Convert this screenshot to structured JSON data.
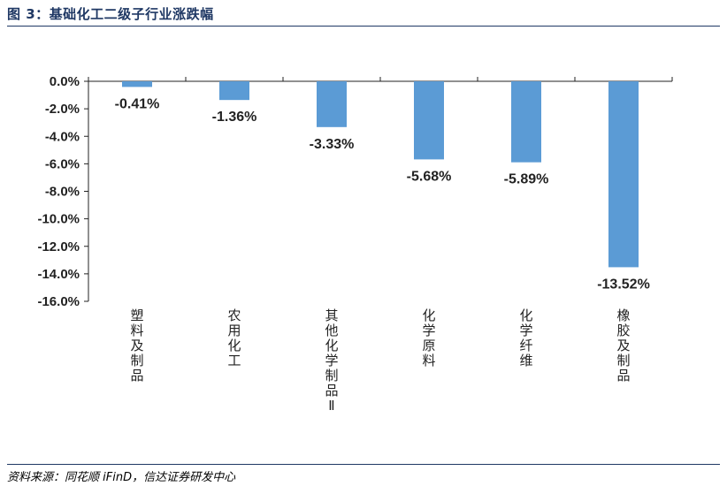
{
  "figure": {
    "title": "图 3：基础化工二级子行业涨跌幅",
    "source": "资料来源：同花顺 iFinD，信达证券研发中心"
  },
  "chart_data": {
    "type": "bar",
    "title": "",
    "xlabel": "",
    "ylabel": "",
    "categories": [
      "塑料及制品",
      "农用化工",
      "其他化学制品Ⅱ",
      "化学原料",
      "化学纤维",
      "橡胶及制品"
    ],
    "values": [
      -0.41,
      -1.36,
      -3.33,
      -5.68,
      -5.89,
      -13.52
    ],
    "data_labels": [
      "-0.41%",
      "-1.36%",
      "-3.33%",
      "-5.68%",
      "-5.89%",
      "-13.52%"
    ],
    "ylim": [
      -16,
      0
    ],
    "yticks": [
      "0.0%",
      "-2.0%",
      "-4.0%",
      "-6.0%",
      "-8.0%",
      "-10.0%",
      "-12.0%",
      "-14.0%",
      "-16.0%"
    ],
    "ytick_values": [
      0,
      -2,
      -4,
      -6,
      -8,
      -10,
      -12,
      -14,
      -16
    ],
    "bar_color": "#5b9bd5",
    "grid": false,
    "legend": "none"
  }
}
